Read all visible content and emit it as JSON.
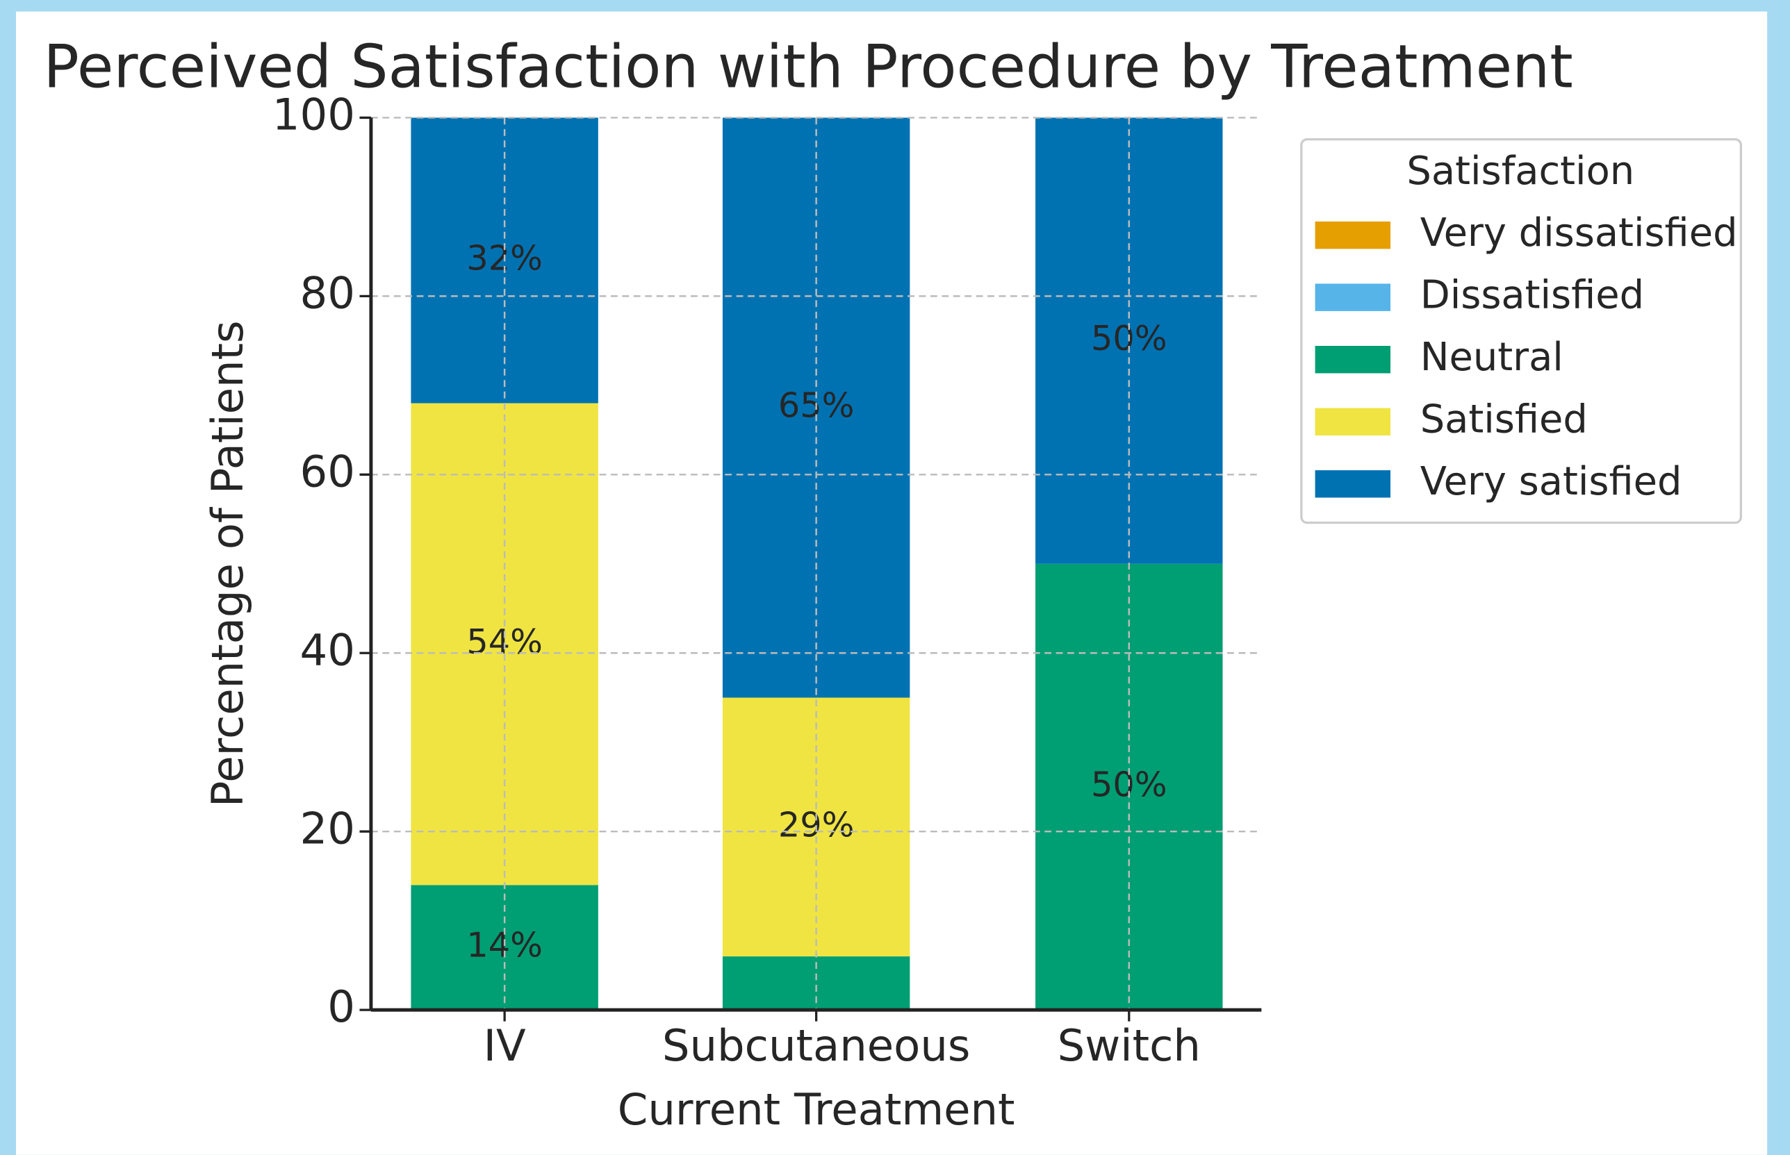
{
  "chart_data": {
    "type": "stacked_bar",
    "title": "Perceived Satisfaction with Procedure by Treatment",
    "x_label": "Current Treatment",
    "y_label": "Percentage of Patients",
    "categories": [
      "IV",
      "Subcutaneous",
      "Switch"
    ],
    "series": [
      {
        "name": "Very dissatisfied",
        "color": "#e69f00",
        "values": [
          0,
          0,
          0
        ],
        "value_labels": [
          null,
          null,
          null
        ]
      },
      {
        "name": "Dissatisfied",
        "color": "#56b4e9",
        "values": [
          0,
          0,
          0
        ],
        "value_labels": [
          null,
          null,
          null
        ]
      },
      {
        "name": "Neutral",
        "color": "#009e73",
        "values": [
          14,
          6,
          50
        ],
        "value_labels": [
          "14%",
          null,
          "50%"
        ]
      },
      {
        "name": "Satisfied",
        "color": "#f0e442",
        "values": [
          54,
          29,
          0
        ],
        "value_labels": [
          "54%",
          "29%",
          null
        ]
      },
      {
        "name": "Very satisfied",
        "color": "#0072b2",
        "values": [
          32,
          65,
          50
        ],
        "value_labels": [
          "32%",
          "65%",
          "50%"
        ]
      }
    ],
    "ylim": [
      0,
      100
    ],
    "yticks": [
      0,
      20,
      40,
      60,
      80,
      100
    ],
    "grid": true,
    "legend_title": "Satisfaction",
    "legend_position": "upper right outside"
  }
}
